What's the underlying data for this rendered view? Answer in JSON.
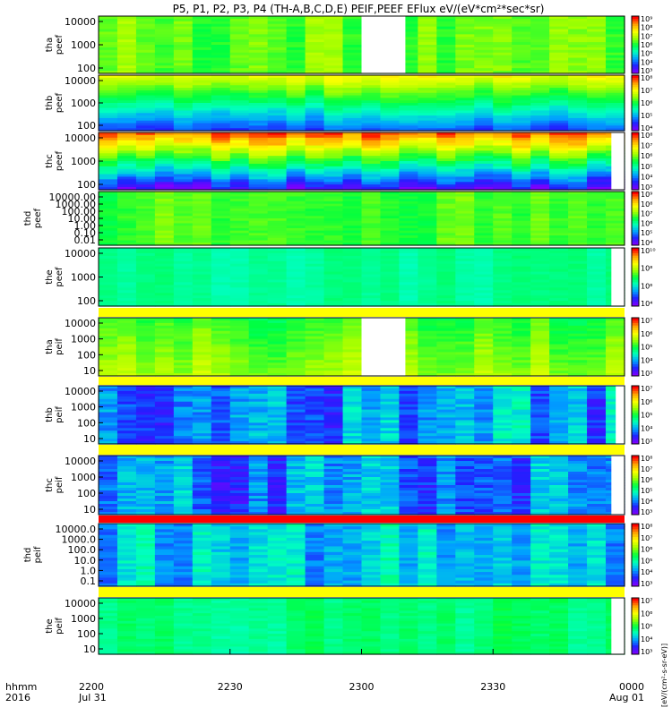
{
  "title": "P5, P1, P2, P3, P4 (TH-A,B,C,D,E) PEIF,PEEF EFlux eV/(eV*cm²*sec*sr)",
  "time_axis": {
    "row1_label": "hhmm",
    "row2_label": "2016",
    "ticks": [
      {
        "t": 0,
        "label": "2200",
        "date": "Jul 31"
      },
      {
        "t": 30,
        "label": "2230",
        "date": ""
      },
      {
        "t": 60,
        "label": "2300",
        "date": ""
      },
      {
        "t": 90,
        "label": "2330",
        "date": ""
      },
      {
        "t": 120,
        "label": "0000",
        "date": "Aug 01"
      }
    ]
  },
  "colorbar_unit_label": "[eV/(cm²-s-sr-eV)]",
  "colors": {
    "spectrogram_scale": [
      "#7f00ff",
      "#2020ff",
      "#00a0ff",
      "#00ffc0",
      "#00ff40",
      "#a0ff00",
      "#ffff00",
      "#ffa000",
      "#ff0000"
    ],
    "separator_bar": "#ffff00",
    "separator_red": "#ff0000"
  },
  "chart_data": [
    {
      "type": "heatmap",
      "name": "tha",
      "species": "peef",
      "yticks": [
        "100",
        "1000",
        "10000"
      ],
      "colorbar_ticks": [
        "10³",
        "10⁴",
        "10⁵",
        "10⁶",
        "10⁷",
        "10⁸",
        "10⁹"
      ],
      "base_level": 0.58,
      "gradient": 0.0,
      "noise": 0.06,
      "gaps": [
        [
          60,
          70
        ]
      ]
    },
    {
      "type": "heatmap",
      "name": "thb",
      "species": "peef",
      "yticks": [
        "100",
        "1000",
        "10000"
      ],
      "colorbar_ticks": [
        "10⁴",
        "10⁵",
        "10⁶",
        "10⁷",
        "10⁸"
      ],
      "base_level": 0.45,
      "gradient": -0.55,
      "noise": 0.05,
      "gaps": []
    },
    {
      "type": "heatmap",
      "name": "thc",
      "species": "peef",
      "yticks": [
        "100",
        "1000",
        "10000"
      ],
      "colorbar_ticks": [
        "10³",
        "10⁴",
        "10⁵",
        "10⁶",
        "10⁷",
        "10⁸"
      ],
      "base_level": 0.5,
      "gradient": -0.85,
      "noise": 0.08,
      "gaps": [
        [
          117,
          120
        ]
      ]
    },
    {
      "type": "heatmap",
      "name": "thd",
      "species": "peef",
      "yticks": [
        "0.01",
        "0.10",
        "1.00",
        "10.00",
        "100.00",
        "1000.00",
        "10000.00"
      ],
      "colorbar_ticks": [
        "10⁴",
        "10⁵",
        "10⁶",
        "10⁷",
        "10⁸",
        "10⁹"
      ],
      "base_level": 0.55,
      "gradient": 0.0,
      "noise": 0.05,
      "gaps": []
    },
    {
      "type": "heatmap",
      "name": "the",
      "species": "peef",
      "yticks": [
        "100",
        "1000",
        "10000"
      ],
      "colorbar_ticks": [
        "10⁴",
        "10⁶",
        "10⁸",
        "10¹⁰"
      ],
      "base_level": 0.42,
      "gradient": 0.0,
      "noise": 0.03,
      "gaps": [
        [
          117,
          120
        ]
      ]
    },
    {
      "type": "heatmap",
      "name": "tha",
      "species": "peif",
      "yticks": [
        "10",
        "100",
        "1000",
        "10000"
      ],
      "colorbar_ticks": [
        "10³",
        "10⁴",
        "10⁵",
        "10⁶",
        "10⁷"
      ],
      "base_level": 0.58,
      "gradient": 0.1,
      "noise": 0.06,
      "gaps": [
        [
          60,
          70
        ]
      ]
    },
    {
      "type": "heatmap",
      "name": "thb",
      "species": "peif",
      "yticks": [
        "10",
        "100",
        "1000",
        "10000"
      ],
      "colorbar_ticks": [
        "10³",
        "10⁴",
        "10⁵",
        "10⁶",
        "10⁷"
      ],
      "base_level": 0.25,
      "gradient": 0.0,
      "noise": 0.12,
      "gaps": [
        [
          118,
          120
        ]
      ]
    },
    {
      "type": "heatmap",
      "name": "thc",
      "species": "peif",
      "yticks": [
        "10",
        "100",
        "1000",
        "10000"
      ],
      "colorbar_ticks": [
        "10³",
        "10⁴",
        "10⁵",
        "10⁶",
        "10⁷",
        "10⁸"
      ],
      "base_level": 0.22,
      "gradient": 0.0,
      "noise": 0.12,
      "gaps": [
        [
          117,
          120
        ]
      ]
    },
    {
      "type": "heatmap",
      "name": "thd",
      "species": "peif",
      "yticks": [
        "0.1",
        "1.0",
        "10.0",
        "100.0",
        "1000.0",
        "10000.0"
      ],
      "colorbar_ticks": [
        "10³",
        "10⁴",
        "10⁵",
        "10⁶",
        "10⁷",
        "10⁸"
      ],
      "base_level": 0.3,
      "gradient": 0.0,
      "noise": 0.1,
      "gaps": []
    },
    {
      "type": "heatmap",
      "name": "the",
      "species": "peif",
      "yticks": [
        "10",
        "100",
        "1000",
        "10000"
      ],
      "colorbar_ticks": [
        "10³",
        "10⁴",
        "10⁵",
        "10⁶",
        "10⁷"
      ],
      "base_level": 0.45,
      "gradient": 0.0,
      "noise": 0.05,
      "gaps": [
        [
          117,
          120
        ]
      ]
    }
  ]
}
